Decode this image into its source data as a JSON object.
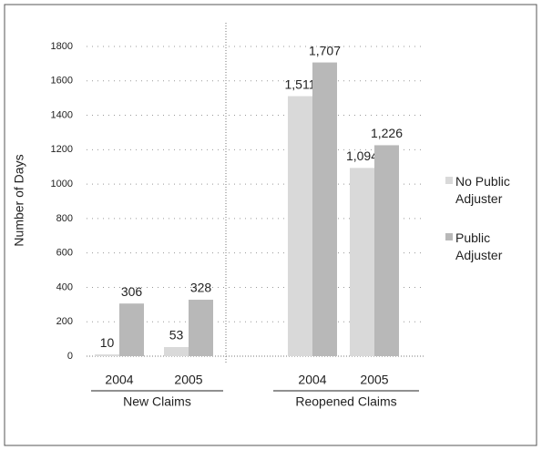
{
  "chart_data": {
    "type": "bar",
    "y_label": "Number of Days",
    "categories": [
      "2004",
      "2005",
      "2004",
      "2005"
    ],
    "groups": [
      "New Claims",
      "Reopened Claims"
    ],
    "series": [
      {
        "name": "No Public Adjuster",
        "color": "#d9d9d9",
        "values": [
          10,
          53,
          1511,
          1094
        ],
        "value_labels": [
          "10",
          "53",
          "1,511",
          "1,094"
        ]
      },
      {
        "name": "Public Adjuster",
        "color": "#b8b8b8",
        "values": [
          306,
          328,
          1707,
          1226
        ],
        "value_labels": [
          "306",
          "328",
          "1,707",
          "1,226"
        ]
      }
    ],
    "ylim": [
      0,
      1800
    ],
    "yticks": [
      0,
      200,
      400,
      600,
      800,
      1000,
      1200,
      1400,
      1600,
      1800
    ],
    "grid": true,
    "legend": "right"
  }
}
